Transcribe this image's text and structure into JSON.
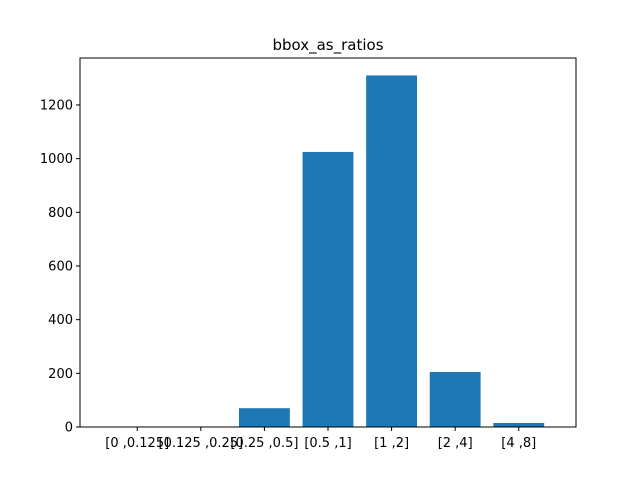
{
  "chart_data": {
    "type": "bar",
    "title": "bbox_as_ratios",
    "xlabel": "",
    "ylabel": "",
    "categories": [
      "[0 ,0.125]",
      "[0.125 ,0.25]",
      "[0.25 ,0.5]",
      "[0.5 ,1]",
      "[1 ,2]",
      "[2 ,4]",
      "[4 ,8]"
    ],
    "values": [
      0,
      0,
      70,
      1025,
      1310,
      205,
      15
    ],
    "ylim": [
      0,
      1375
    ],
    "yticks": [
      0,
      200,
      400,
      600,
      800,
      1000,
      1200
    ],
    "bar_color": "#1f77b4",
    "grid": false,
    "legend": "none"
  }
}
